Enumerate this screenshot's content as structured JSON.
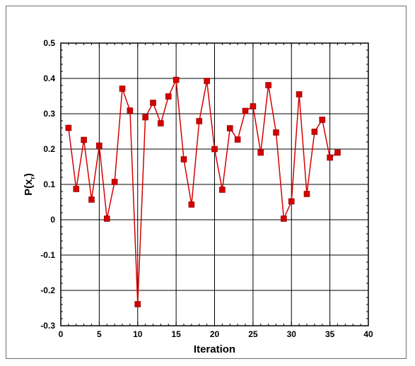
{
  "chart_data": {
    "type": "line",
    "xlabel": "Iteration",
    "ylabel_main": "P(x",
    "ylabel_sub": "r",
    "ylabel_close": ")",
    "xlim": [
      0,
      40
    ],
    "ylim": [
      -0.3,
      0.5
    ],
    "xticks": [
      0,
      5,
      10,
      15,
      20,
      25,
      30,
      35,
      40
    ],
    "yticks": [
      -0.3,
      -0.2,
      -0.1,
      0,
      0.1,
      0.2,
      0.3,
      0.4,
      0.5
    ],
    "xtick_labels": [
      "0",
      "5",
      "10",
      "15",
      "20",
      "25",
      "30",
      "35",
      "40"
    ],
    "ytick_labels": [
      "-0.3",
      "-0.2",
      "-0.1",
      "0",
      "0.1",
      "0.2",
      "0.3",
      "0.4",
      "0.5"
    ],
    "grid": true,
    "marker": "square",
    "color": "#d40000",
    "series": [
      {
        "x": [
          1,
          2,
          3,
          4,
          5,
          6,
          7,
          8,
          9,
          10,
          11,
          12,
          13,
          14,
          15,
          16,
          17,
          18,
          19,
          20,
          21,
          22,
          23,
          24,
          25,
          26,
          27,
          28,
          29,
          30,
          31,
          32,
          33,
          34,
          35,
          36
        ],
        "y": [
          0.26,
          0.087,
          0.226,
          0.057,
          0.21,
          0.003,
          0.107,
          0.371,
          0.309,
          -0.239,
          0.29,
          0.331,
          0.273,
          0.349,
          0.396,
          0.171,
          0.043,
          0.279,
          0.393,
          0.2,
          0.085,
          0.259,
          0.227,
          0.308,
          0.321,
          0.19,
          0.381,
          0.247,
          0.003,
          0.052,
          0.355,
          0.073,
          0.249,
          0.283,
          0.176,
          0.19
        ]
      }
    ]
  }
}
